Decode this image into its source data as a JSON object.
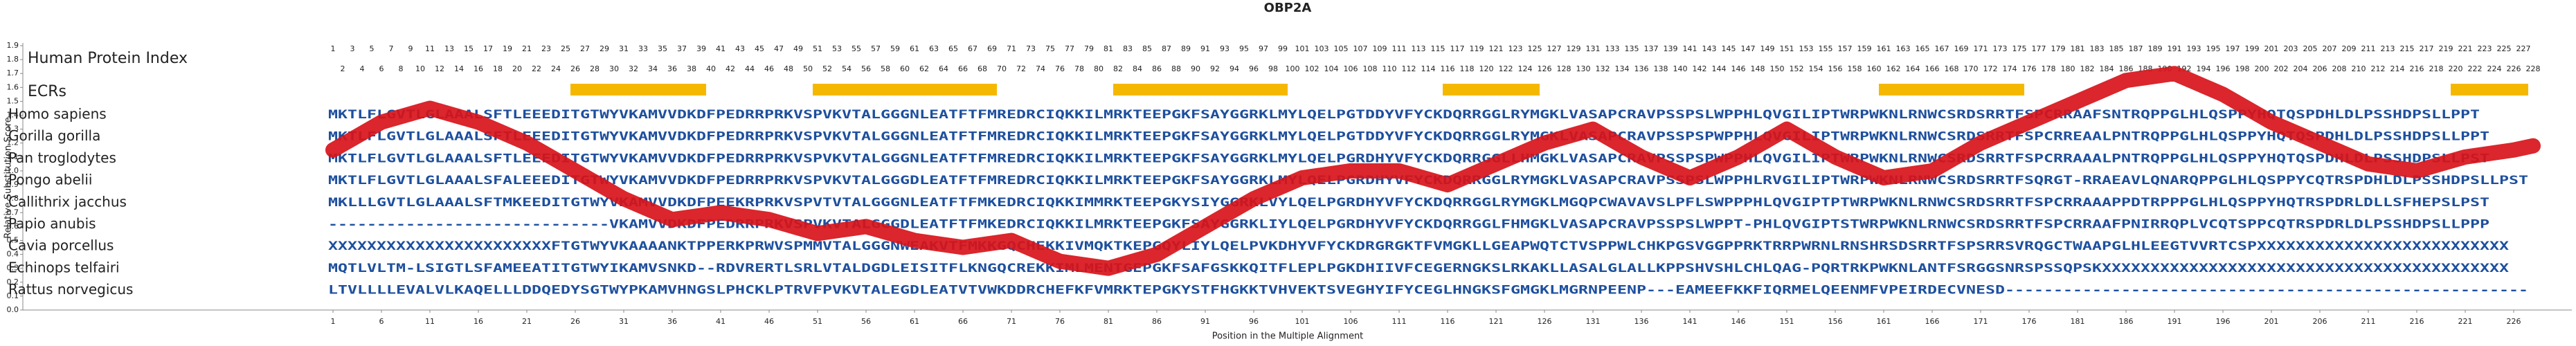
{
  "chart_data": {
    "type": "line",
    "title": "OBP2A",
    "y_label": "Relative Substitution Score",
    "x_label": "Position in the Multiple Alignment",
    "xlim": [
      -31,
      232
    ],
    "ylim": [
      0,
      1.9
    ],
    "xticks": [
      1,
      6,
      11,
      16,
      21,
      26,
      31,
      36,
      41,
      46,
      51,
      56,
      61,
      66,
      71,
      76,
      81,
      86,
      91,
      96,
      101,
      106,
      111,
      116,
      121,
      126,
      131,
      136,
      141,
      146,
      151,
      156,
      161,
      166,
      171,
      176,
      181,
      186,
      191,
      196,
      201,
      206,
      211,
      216,
      221,
      226
    ],
    "yticks": [
      {
        "value": 0,
        "label": "0.0"
      },
      0.1,
      0.2,
      0.3,
      0.4,
      0.5,
      0.6,
      0.7,
      0.8,
      0.9,
      {
        "value": 1,
        "label": "1.0"
      },
      1.1,
      1.2,
      1.3,
      1.4,
      1.5,
      1.6,
      1.7,
      1.8,
      1.9
    ],
    "x": [
      1,
      6,
      11,
      16,
      21,
      26,
      31,
      36,
      41,
      46,
      51,
      56,
      61,
      66,
      71,
      76,
      81,
      86,
      91,
      96,
      101,
      106,
      111,
      116,
      121,
      126,
      131,
      136,
      141,
      146,
      151,
      156,
      161,
      166,
      171,
      176,
      181,
      186,
      191,
      196,
      201,
      206,
      211,
      216,
      221,
      226,
      228
    ],
    "series": [
      {
        "color": "#d7141a",
        "values": [
          1.15,
          1.35,
          1.45,
          1.35,
          1.2,
          1.0,
          0.8,
          0.65,
          0.7,
          0.65,
          0.55,
          0.6,
          0.5,
          0.45,
          0.5,
          0.35,
          0.3,
          0.4,
          0.6,
          0.8,
          0.95,
          1.0,
          1.0,
          0.9,
          1.05,
          1.2,
          1.3,
          1.1,
          0.95,
          1.1,
          1.3,
          1.1,
          0.95,
          1.0,
          1.2,
          1.35,
          1.5,
          1.65,
          1.7,
          1.55,
          1.35,
          1.2,
          1.05,
          1.0,
          1.1,
          1.15,
          1.18
        ]
      }
    ],
    "index_label": "Human Protein Index",
    "human_protein_index": [
      1,
      2,
      3,
      4,
      5,
      6,
      7,
      8,
      9,
      10,
      11,
      12,
      13,
      14,
      15,
      16,
      17,
      18,
      19,
      20,
      21,
      22,
      23,
      24,
      25,
      26,
      27,
      28,
      29,
      30,
      31,
      32,
      33,
      34,
      35,
      36,
      37,
      38,
      39,
      40,
      41,
      42,
      43,
      44,
      45,
      46,
      47,
      48,
      49,
      50,
      51,
      52,
      53,
      54,
      55,
      56,
      57,
      58,
      59,
      60,
      61,
      62,
      63,
      64,
      65,
      66,
      67,
      68,
      69,
      70,
      71,
      72,
      73,
      74,
      75,
      76,
      77,
      78,
      79,
      80,
      81,
      82,
      83,
      84,
      85,
      86,
      87,
      88,
      89,
      90,
      91,
      92,
      93,
      94,
      95,
      96,
      97,
      98,
      99,
      100,
      101,
      102,
      103,
      104,
      105,
      106,
      107,
      108,
      109,
      110,
      111,
      112,
      113,
      114,
      115,
      116,
      117,
      118,
      119,
      120,
      121,
      122,
      123,
      124,
      125,
      126,
      127,
      128,
      129,
      130,
      131,
      132,
      133,
      134,
      135,
      136,
      137,
      138,
      139,
      140,
      141,
      142,
      143,
      144,
      145,
      146,
      147,
      148,
      149,
      150,
      151,
      152,
      153,
      154,
      155,
      156,
      157,
      158,
      159,
      160,
      161,
      162,
      163,
      164,
      165,
      166,
      167,
      168,
      169,
      170,
      171,
      172,
      173,
      174,
      175,
      176,
      177,
      178,
      179,
      180,
      181,
      182,
      183,
      184,
      185,
      186,
      187,
      188,
      189,
      190,
      191,
      192,
      193,
      194,
      195,
      196,
      197,
      198,
      199,
      200,
      201,
      202,
      203,
      204,
      205,
      206,
      207,
      208,
      209,
      210,
      211,
      212,
      213,
      214,
      215,
      216,
      217,
      218,
      219,
      220,
      221,
      222,
      223,
      224,
      225,
      226,
      227,
      228
    ],
    "ecr_label": "ECRs",
    "ecr_color": "#f5b800",
    "ecrs": [
      {
        "start": 26,
        "end": 39
      },
      {
        "start": 51,
        "end": 69
      },
      {
        "start": 82,
        "end": 99
      },
      {
        "start": 116,
        "end": 125
      },
      {
        "start": 161,
        "end": 175
      },
      {
        "start": 220,
        "end": 227
      }
    ],
    "sequence_color": "#1d4f9e",
    "alignment": [
      {
        "name": "Homo sapiens",
        "sequence": "MKTLFLGVTLGLAAALSFTLEEEDITGTWYVKAMVVDKDFPEDRRPRKVSPVKVTALGGGNLEATFTFMREDRCIQKKILMRKTEEPGKFSAYGGRKLMYLQELPGTDDYVFYCKDQRRGGLRYMGKLVASAPCRAVPSSPSLWPPHLQVGILIPTWRPWKNLRNWCSRDSRRTFSPCRRAAFSNTRQPPGLHLQSPPYHQTQSPDHLDLPSSHDPSLLPPT"
      },
      {
        "name": "Gorilla gorilla",
        "sequence": "MKTLFLGVTLGLAAALSFTLEEEDITGTWYVKAMVVDKDFPEDRRPRKVSPVKVTALGGGNLEATFTFMREDRCIQKKILMRKTEEPGKFSAYGGRKLMYLQELPGTDDYVFYCKDQRRGGLRYMGKLVASAPCRAVPSSPSPWPPHLQVGILIPTWRPWKNLRNWCSRDSRRTFSPCRREAALPNTRQPPGLHLQSPPYHQTQSPDHLDLPSSHDPSLLPPT"
      },
      {
        "name": "Pan troglodytes",
        "sequence": "MKTLFLGVTLGLAAALSFTLEEEDITGTWYVKAMVVDKDFPEDRRPRKVSPVKVTALGGGNLEATFTFMREDRCIQKKILMRKTEEPGKFSAYGGRKLMYLQELPGRDHYVFYCKDQRRGGLLHMGKLVASAPCRAVPSSPSPWPPHLQVGILIPTWRPWKNLRNWCSRDSRRTFSPCRRAAALPNTRQPPGLHLQSPPYHQTQSPDHLDLPSSHDPSLLPST"
      },
      {
        "name": "Pongo abelii",
        "sequence": "MKTLFLGVTLGLAAALSFALEEEDITGTWYVKAMVVDKDFPEDRRPRKVSPVKVTALGGGDLEATFTFMREDRCIQKKILMRKTEEPGKFSAYGGRKLMYLQELPGRDHYVFYCKDQRRGGLRYMGKLVASAPCRAVPSSPSLWPPHLRVGILIPTWRPWKNLRNWCSRDSRRTFSQRGT-RRAEAVLQNARQPPGLHLQSPPYCQTRSPDHLDLPSSHDPSLLPST"
      },
      {
        "name": "Callithrix jacchus",
        "sequence": "MKLLLGVTLGLAAALSFTMKEEDITGTWYVKAMVVDKDFPEEKRPRKVSPVTVTALGGGNLEATFTFMKEDRCIQKKIMMRKTEEPGKYSIYGGRKLVYLQELPGRDHYVFYCKDQRRGGLRYMGKLMGQPCWAVAVSLPFLSWPPPHLQVGIPTPTWRPWKNLRNWCSRDSRRTFSPCRRAAAPPDTRPPPGLHLQSPPYHQTRSPDRLDLLSFHEPSLPST"
      },
      {
        "name": "Papio anubis",
        "sequence": "-----------------------------VKAMVVDKDFPEDRRPRKVSPVKVTALGGGDLEATFTFMKEDRCIQKKILMRKTEEPGKFSAYGGRKLIYLQELPGRDHYVFYCKDQRRGGLFHMGKLVASAPCRAVPSSPSLWPPT-PHLQVGIPTSTWRPWKNLRNWCSRDSRRTFSPCRRAAFPNIRRQPLVCQTSPPCQTRSPDRLDLPSSHDPSLLPPP"
      },
      {
        "name": "Cavia porcellus",
        "sequence": "XXXXXXXXXXXXXXXXXXXXXXXFTGTWYVKAAAANKTPPERKPRWVSPMMVTALGGGNWEAKVTFMKKGQCHEKKIVMQKTKEPGQYLIYLQELPVKDHYVFYCKDRGRGKTFVMGKLLGEAPWQTCTVSPPWLCHKPGSVGGPPRKTRRPWRNLRNSHRSDSRRTFSPSRRSVRQGCTWAAPGLHLEEGTVVRTCSPXXXXXXXXXXXXXXXXXXXXXXXXXX"
      },
      {
        "name": "Echinops telfairi",
        "sequence": "MQTLVLTM-LSIGTLSFAMEEATITGTWYIKAMVSNKD--RDVRERTLSRLVTALDGDLEISITFLKNGQCREKKIMLMENTGEPGKFSAFGSKKQITFLEPLPGKDHIIVFCEGERNGKSLRKAKLLASALGLALLKPPSHVSHLCHLQAG-PQRTRKPWKNLANTFSRGGSNRSPSSQPSKXXXXXXXXXXXXXXXXXXXXXXXXXXXXXXXXXXXXXXXXXX"
      },
      {
        "name": "Rattus norvegicus",
        "sequence": "LTVLLLLEVALVLKAQELLLDDQEDYSGTWYPKAMVHNGSLPHCKLPTRVFPVKVTALEGDLEATVTVWKDDRCHEFKFVMRKTEPGKYSTFHGKKTVHVEKTSVEGHYIFYCEGLHNGKSFGMGKLMGRNPEENP---EAMEEFKKFIQRMELQEENMFVPEIRDECVNESD------------------------------------------------------"
      }
    ]
  }
}
